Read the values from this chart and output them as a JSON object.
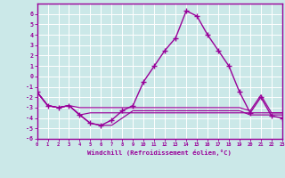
{
  "xlabel": "Windchill (Refroidissement éolien,°C)",
  "bg_color": "#cbe8e8",
  "grid_color": "#aad4d4",
  "line_color": "#990099",
  "hours": [
    0,
    1,
    2,
    3,
    4,
    5,
    6,
    7,
    8,
    9,
    10,
    11,
    12,
    13,
    14,
    15,
    16,
    17,
    18,
    19,
    20,
    21,
    22,
    23
  ],
  "temp": [
    -1.5,
    -2.8,
    -3.0,
    -2.8,
    -3.7,
    -4.5,
    -4.7,
    -4.2,
    -3.3,
    -2.8,
    -0.5,
    1.0,
    2.5,
    3.7,
    6.3,
    5.8,
    4.0,
    2.5,
    1.0,
    -1.5,
    -3.5,
    -2.0,
    -3.8,
    -4.0
  ],
  "wc1": [
    -1.5,
    -2.8,
    -3.0,
    -2.8,
    -3.0,
    -3.0,
    -3.0,
    -3.0,
    -3.0,
    -3.0,
    -3.0,
    -3.0,
    -3.0,
    -3.0,
    -3.0,
    -3.0,
    -3.0,
    -3.0,
    -3.0,
    -3.0,
    -3.3,
    -1.8,
    -3.5,
    -3.5
  ],
  "wc2": [
    -1.5,
    -2.8,
    -3.0,
    -2.8,
    -3.7,
    -3.5,
    -3.5,
    -3.5,
    -3.5,
    -3.5,
    -3.5,
    -3.5,
    -3.5,
    -3.5,
    -3.5,
    -3.5,
    -3.5,
    -3.5,
    -3.5,
    -3.5,
    -3.5,
    -3.5,
    -3.5,
    -3.5
  ],
  "wc3": [
    -1.5,
    -2.8,
    -3.0,
    -2.8,
    -3.7,
    -4.5,
    -4.7,
    -4.7,
    -4.0,
    -3.3,
    -3.3,
    -3.3,
    -3.3,
    -3.3,
    -3.3,
    -3.3,
    -3.3,
    -3.3,
    -3.3,
    -3.3,
    -3.7,
    -3.7,
    -3.7,
    -3.7
  ],
  "ylim": [
    -6,
    7
  ],
  "xlim": [
    0,
    23
  ]
}
